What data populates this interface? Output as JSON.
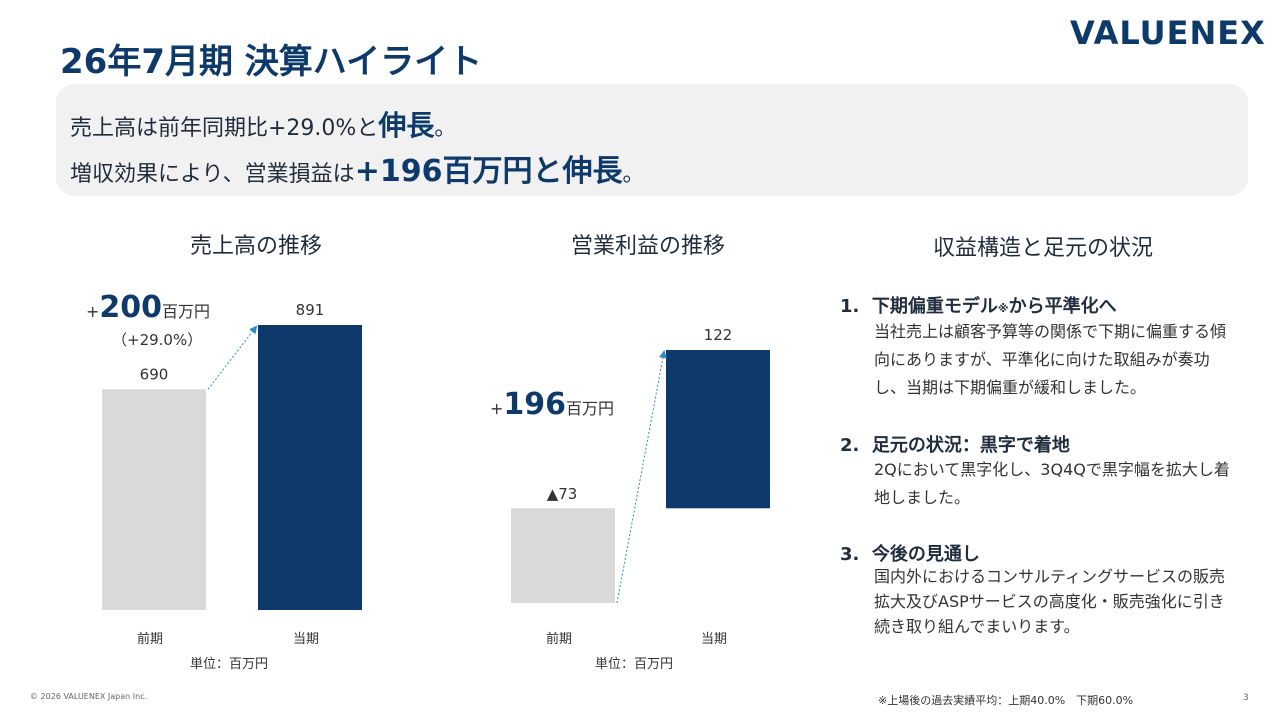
{
  "header": {
    "title": "26年7月期 決算ハイライト",
    "logo_text": "VALUENEX"
  },
  "summary": {
    "line1_prefix": "売上高は前年同期比+29.0%と",
    "line1_emph": "伸長",
    "line1_suffix": "。",
    "line2_prefix": "増収効果により、営業損益は",
    "line2_emph": "+196百万円と伸長",
    "line2_suffix": "。"
  },
  "sections": {
    "revenue_title": "売上高の推移",
    "op_title": "営業利益の推移",
    "structure_title": "収益構造と足元の状況"
  },
  "revenue_delta": {
    "plus": "+",
    "value": "200",
    "unit": "百万円",
    "pct": "（+29.0%）"
  },
  "op_delta": {
    "plus": "+",
    "value": "196",
    "unit": "百万円"
  },
  "chart_data": [
    {
      "type": "bar",
      "title": "売上高の推移",
      "categories": [
        "前期",
        "当期"
      ],
      "values": [
        690,
        891
      ],
      "value_labels": [
        "690",
        "891"
      ],
      "colors": [
        "#d9d9d9",
        "#0e3a6b"
      ],
      "unit_label": "単位：百万円",
      "ylim": [
        0,
        891
      ]
    },
    {
      "type": "bar",
      "title": "営業利益の推移",
      "categories": [
        "前期",
        "当期"
      ],
      "values": [
        -73,
        122
      ],
      "value_labels": [
        "▲73",
        "122"
      ],
      "colors": [
        "#d9d9d9",
        "#0e3a6b"
      ],
      "unit_label": "単位：百万円",
      "ylim": [
        -73,
        122
      ]
    }
  ],
  "points": [
    {
      "num": "1.",
      "head": "下期偏重モデル",
      "head_mark": "※",
      "head_tail": "から平準化へ",
      "body": "当社売上は顧客予算等の関係で下期に偏重する傾向にありますが、平準化に向けた取組みが奏功し、当期は下期偏重が緩和しました。"
    },
    {
      "num": "2.",
      "head": "足元の状況：黒字で着地",
      "head_mark": "",
      "head_tail": "",
      "body": "2Qにおいて黒字化し、3Q4Qで黒字幅を拡大し着地しました。"
    },
    {
      "num": "3.",
      "head": "今後の見通し",
      "head_mark": "",
      "head_tail": "",
      "body": "国内外におけるコンサルティングサービスの販売拡大及びASPサービスの高度化・販売強化に引き続き取り組んでまいります。"
    }
  ],
  "footer": {
    "copyright": "© 2026 VALUENEX Japan Inc.",
    "note": "※上場後の過去実績平均：上期40.0%　下期60.0%",
    "page": "3"
  }
}
